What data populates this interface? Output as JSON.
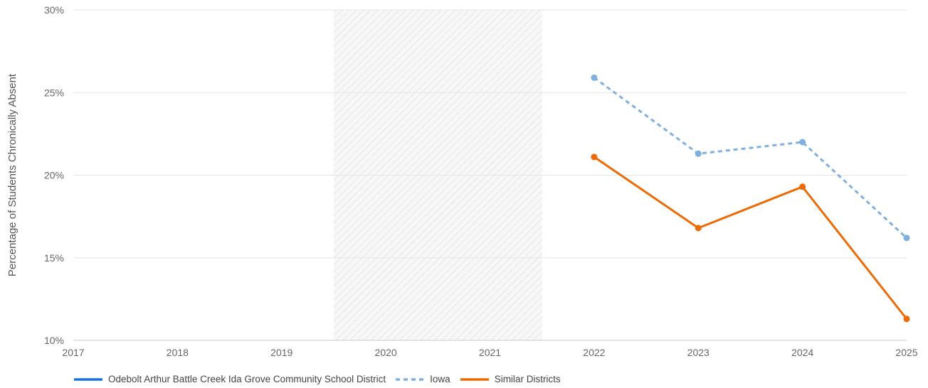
{
  "chart_data": {
    "type": "line",
    "ylabel": "Percentage of Students Chronically Absent",
    "xlabel": "",
    "x": [
      2017,
      2018,
      2019,
      2020,
      2021,
      2022,
      2023,
      2024,
      2025
    ],
    "x_tick_labels": [
      "2017",
      "2018",
      "2019",
      "2020",
      "2021",
      "2022",
      "2023",
      "2024",
      "2025"
    ],
    "xlim": [
      2017,
      2025
    ],
    "ylim": [
      10,
      30
    ],
    "y_ticks": [
      10,
      15,
      20,
      25,
      30
    ],
    "y_tick_labels": [
      "10%",
      "15%",
      "20%",
      "25%",
      "30%"
    ],
    "grid": "horizontal",
    "legend_position": "bottom-left",
    "shaded_region": {
      "from": 2019.5,
      "to": 2021.5,
      "pattern": "diagonal-hatch"
    },
    "series": [
      {
        "name": "Odebolt Arthur Battle Creek Ida Grove Community School District",
        "color": "#1a73d9",
        "style": "solid",
        "x": [],
        "values": []
      },
      {
        "name": "Iowa",
        "color": "#7fb0df",
        "style": "dashed",
        "x": [
          2022,
          2023,
          2024,
          2025
        ],
        "values": [
          25.9,
          21.3,
          22.0,
          16.2
        ]
      },
      {
        "name": "Similar Districts",
        "color": "#ec6b07",
        "style": "solid",
        "x": [
          2022,
          2023,
          2024,
          2025
        ],
        "values": [
          21.1,
          16.8,
          19.3,
          11.3
        ]
      }
    ]
  }
}
